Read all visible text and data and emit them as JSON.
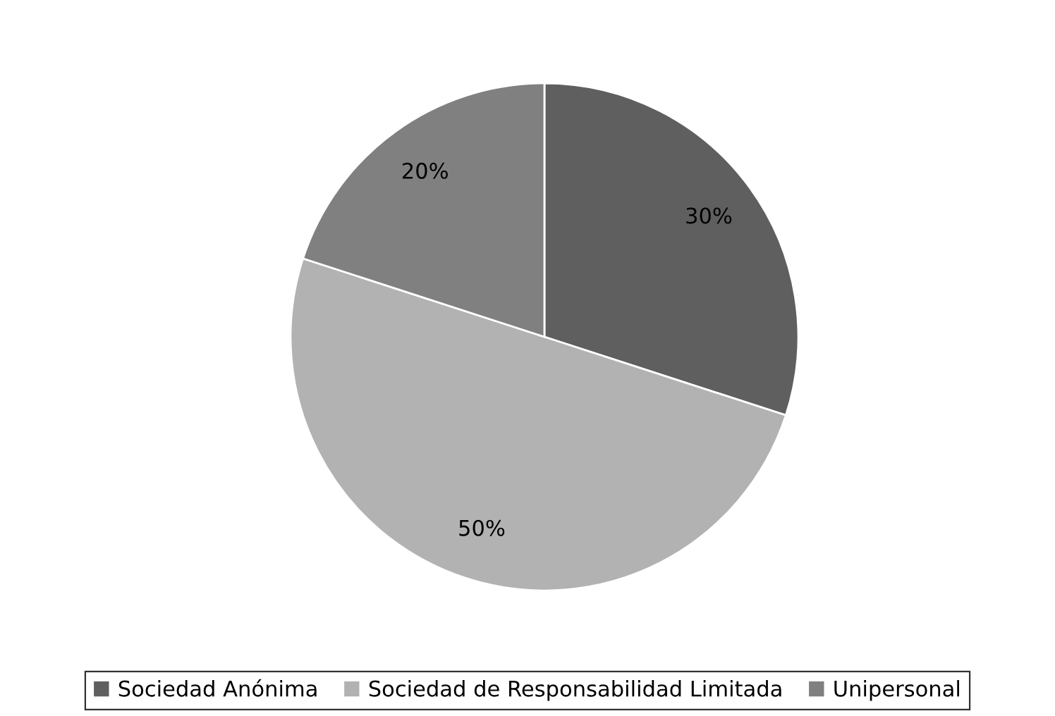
{
  "chart_data": {
    "type": "pie",
    "categories": [
      "Sociedad Anónima",
      "Sociedad de Responsabilidad Limitada",
      "Unipersonal"
    ],
    "values": [
      30,
      50,
      20
    ],
    "colors": [
      "#5f5f5f",
      "#b2b2b2",
      "#808080"
    ],
    "value_labels": [
      "30%",
      "50%",
      "20%"
    ],
    "legend": "bottom"
  }
}
